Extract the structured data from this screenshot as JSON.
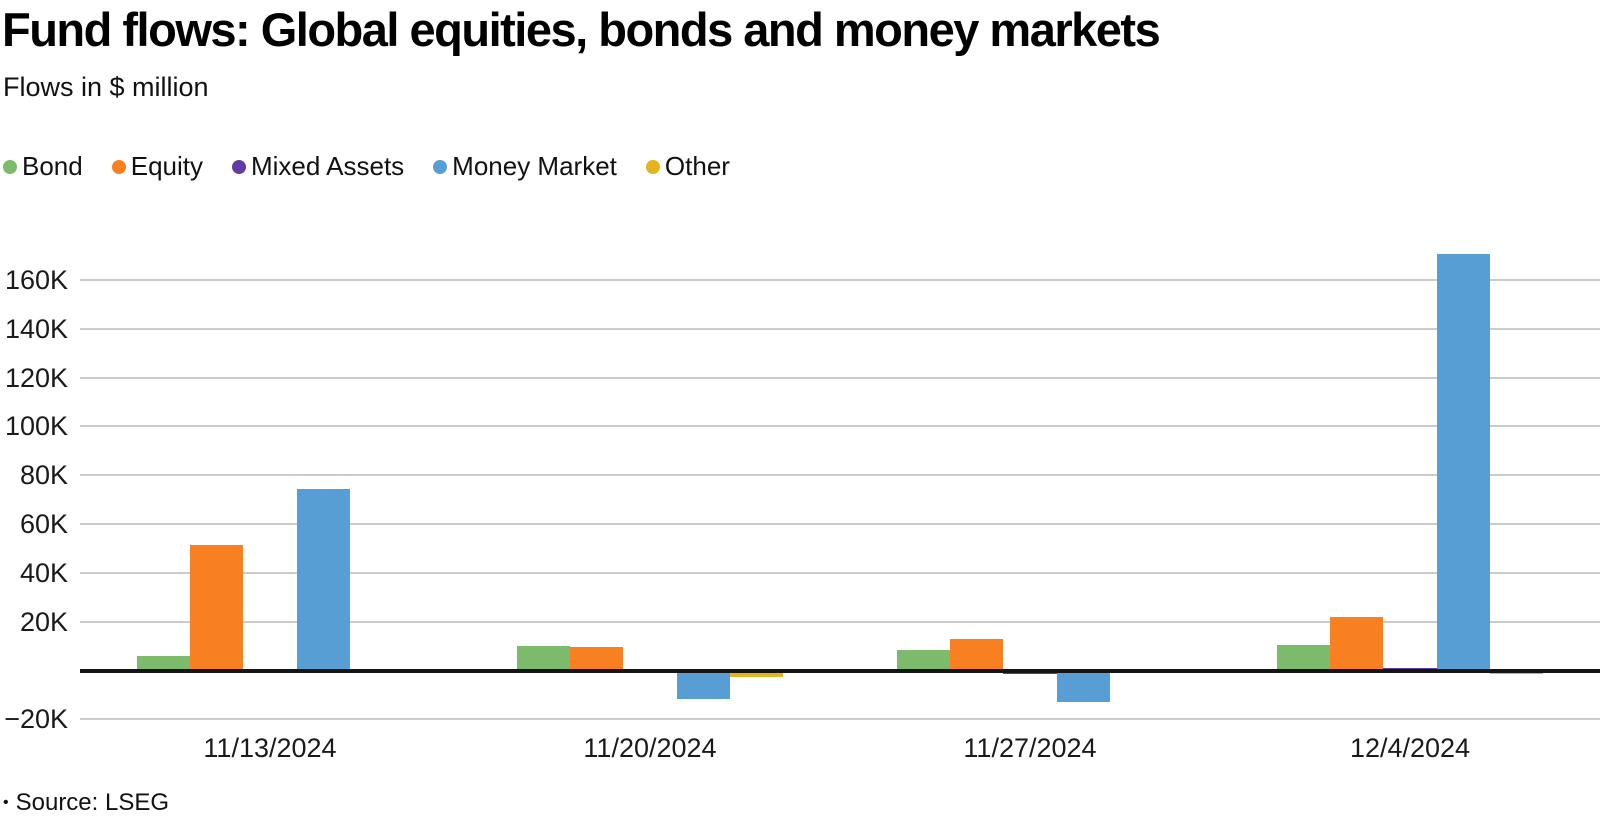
{
  "header": {
    "title": "Fund flows: Global equities, bonds and money markets",
    "subtitle": "Flows in $ million"
  },
  "footer": {
    "bullet": "•",
    "source": "Source: LSEG"
  },
  "chart_data": {
    "type": "bar",
    "title": "Fund flows: Global equities, bonds and money markets",
    "subtitle": "Flows in $ million",
    "unit": "$ million",
    "categories": [
      "11/13/2024",
      "11/20/2024",
      "11/27/2024",
      "12/4/2024"
    ],
    "series": [
      {
        "name": "Bond",
        "color": "#7cbb6c",
        "values": [
          5800,
          10200,
          8500,
          10600
        ]
      },
      {
        "name": "Equity",
        "color": "#f88020",
        "values": [
          51400,
          9600,
          13100,
          21900
        ]
      },
      {
        "name": "Mixed Assets",
        "color": "#5f3da2",
        "values": [
          -1200,
          -200,
          -1300,
          900
        ]
      },
      {
        "name": "Money Market",
        "color": "#569ed4",
        "values": [
          74400,
          -11500,
          -12800,
          170800
        ]
      },
      {
        "name": "Other",
        "color": "#e5b31e",
        "values": [
          -100,
          -2600,
          -100,
          -1500
        ]
      }
    ],
    "y_ticks": [
      {
        "label": "160K",
        "value": 160000
      },
      {
        "label": "140K",
        "value": 140000
      },
      {
        "label": "120K",
        "value": 120000
      },
      {
        "label": "100K",
        "value": 100000
      },
      {
        "label": "80K",
        "value": 80000
      },
      {
        "label": "60K",
        "value": 60000
      },
      {
        "label": "40K",
        "value": 40000
      },
      {
        "label": "20K",
        "value": 20000
      },
      {
        "label": "−20K",
        "value": -20000
      }
    ],
    "ylim": [
      -20000,
      175000
    ],
    "grid": true,
    "legend_position": "top",
    "zero_axis": true
  }
}
